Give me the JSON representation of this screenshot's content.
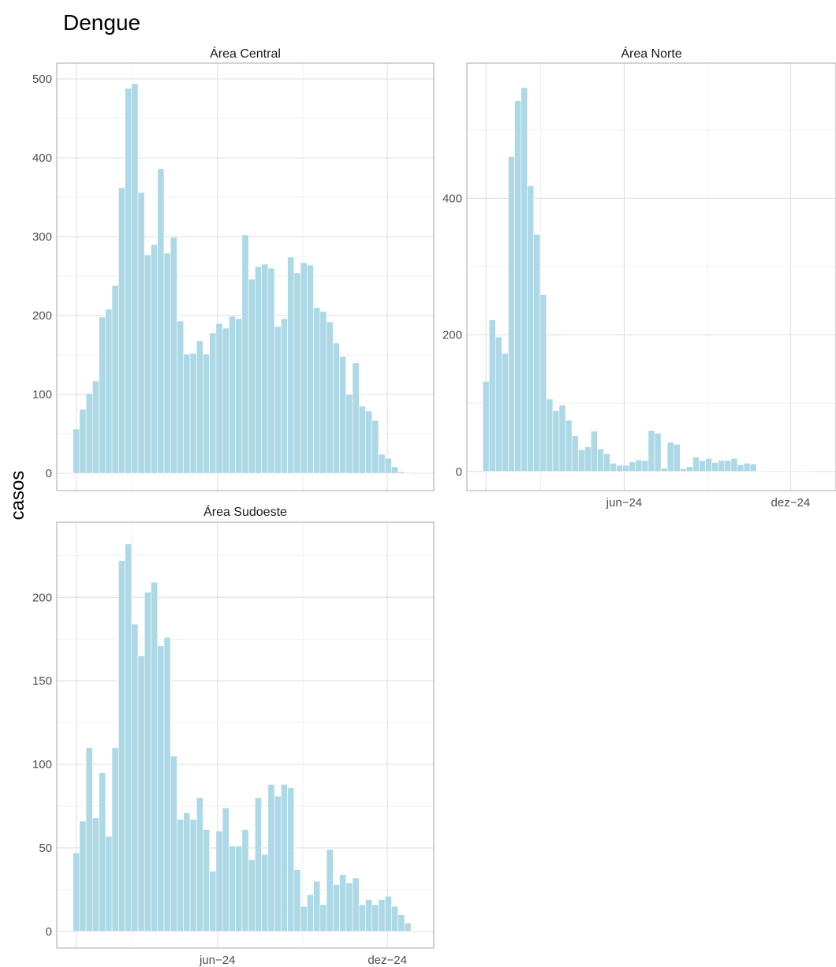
{
  "chart_data": {
    "type": "bar",
    "title": "Dengue",
    "ylabel": "casos",
    "xlabel": "",
    "bar_color": "#ADD8E6",
    "bar_edge_color": "#FFFFFF",
    "grid": true,
    "x_start_week": "2024-01-01",
    "x_ticks": [
      {
        "label": "jun−24",
        "date": "2024-06-01"
      },
      {
        "label": "dez−24",
        "date": "2024-12-01"
      }
    ],
    "x_minor_ticks": [
      "2024-03-01",
      "2024-09-01"
    ],
    "panels": [
      {
        "label": "Área Central",
        "ylim": [
          -22,
          520
        ],
        "yticks": [
          0,
          100,
          200,
          300,
          400,
          500
        ],
        "show_x_labels": false,
        "values": [
          56,
          81,
          101,
          117,
          198,
          208,
          238,
          362,
          488,
          494,
          356,
          277,
          290,
          386,
          279,
          299,
          193,
          151,
          152,
          168,
          151,
          178,
          190,
          184,
          199,
          196,
          302,
          246,
          262,
          265,
          260,
          186,
          196,
          274,
          254,
          267,
          264,
          210,
          205,
          192,
          165,
          148,
          100,
          140,
          85,
          79,
          67,
          24,
          19,
          8,
          2,
          1
        ]
      },
      {
        "label": "Área Norte",
        "ylim": [
          -28,
          598
        ],
        "yticks": [
          0,
          200,
          400
        ],
        "show_x_labels": true,
        "values": [
          132,
          222,
          197,
          173,
          461,
          543,
          562,
          418,
          347,
          259,
          106,
          89,
          97,
          75,
          52,
          32,
          36,
          59,
          33,
          26,
          12,
          9,
          9,
          14,
          17,
          16,
          60,
          56,
          5,
          43,
          40,
          4,
          7,
          21,
          16,
          19,
          13,
          16,
          16,
          19,
          10,
          12,
          11,
          1,
          1,
          1,
          1,
          1,
          1,
          1,
          1,
          1
        ]
      },
      {
        "label": "Área Sudoeste",
        "ylim": [
          -10,
          245
        ],
        "yticks": [
          0,
          50,
          100,
          150,
          200
        ],
        "show_x_labels": true,
        "values": [
          47,
          66,
          110,
          68,
          95,
          57,
          110,
          222,
          232,
          184,
          165,
          203,
          209,
          171,
          176,
          105,
          67,
          71,
          67,
          80,
          61,
          36,
          60,
          74,
          51,
          51,
          61,
          43,
          80,
          46,
          88,
          81,
          88,
          86,
          37,
          15,
          22,
          30,
          16,
          49,
          28,
          34,
          29,
          32,
          16,
          19,
          16,
          19,
          21,
          15,
          10,
          5
        ]
      }
    ]
  }
}
